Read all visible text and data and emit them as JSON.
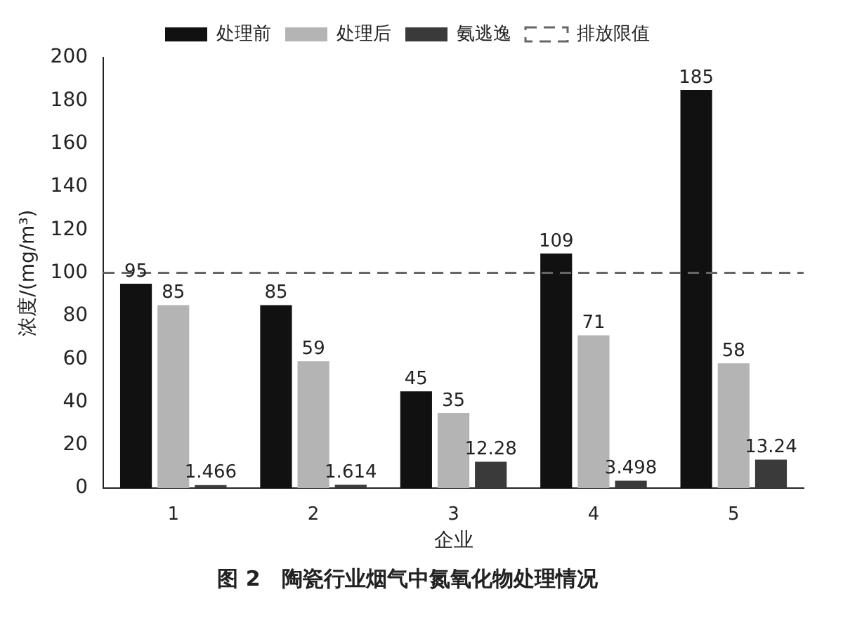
{
  "chart_data": {
    "type": "bar",
    "title": "图 2　陶瓷行业烟气中氮氧化物处理情况",
    "xlabel": "企业",
    "ylabel": "浓度/(mg/m³)",
    "categories": [
      "1",
      "2",
      "3",
      "4",
      "5"
    ],
    "series": [
      {
        "name": "处理前",
        "color": "#111111",
        "values": [
          95,
          85,
          45,
          109,
          185
        ]
      },
      {
        "name": "处理后",
        "color": "#b4b4b4",
        "values": [
          85,
          59,
          35,
          71,
          58
        ]
      },
      {
        "name": "氨逃逸",
        "color": "#3a3a3a",
        "values": [
          1.466,
          1.614,
          12.28,
          3.498,
          13.24
        ]
      }
    ],
    "ylim": [
      0,
      200
    ],
    "yticks": [
      0,
      20,
      40,
      60,
      80,
      100,
      120,
      140,
      160,
      180,
      200
    ],
    "ref_lines": [
      {
        "axis": "y",
        "value": 100,
        "label": "排放限值",
        "color": "#666666",
        "line_style": "dashed"
      }
    ],
    "data_labels": true,
    "legend": "top",
    "grid": false
  }
}
